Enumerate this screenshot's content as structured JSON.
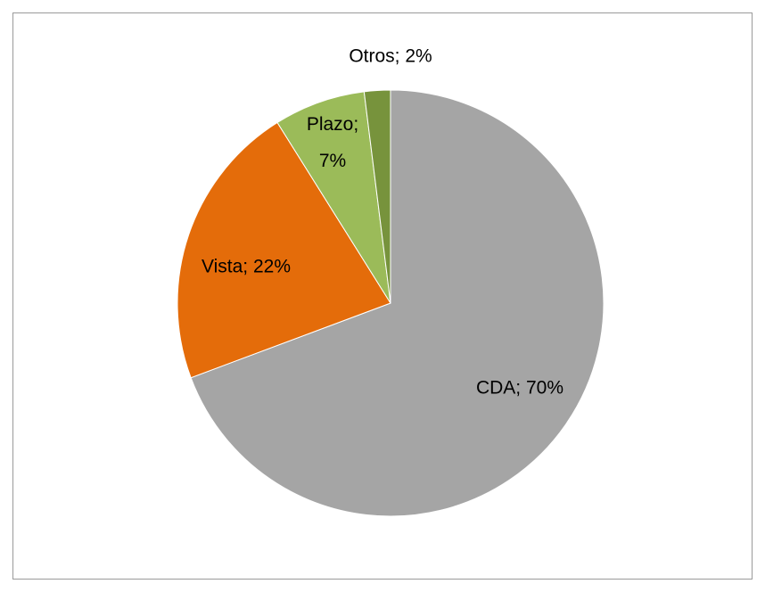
{
  "chart_data": {
    "type": "pie",
    "values": [
      70,
      22,
      7,
      2
    ],
    "value_labels": [
      "CDA; 70%",
      "Vista; 22%",
      "Plazo; 7%",
      "Otros; 2%"
    ],
    "colors": [
      "#a5a5a5",
      "#e46c0a",
      "#9bbb59",
      "#77933c"
    ]
  }
}
